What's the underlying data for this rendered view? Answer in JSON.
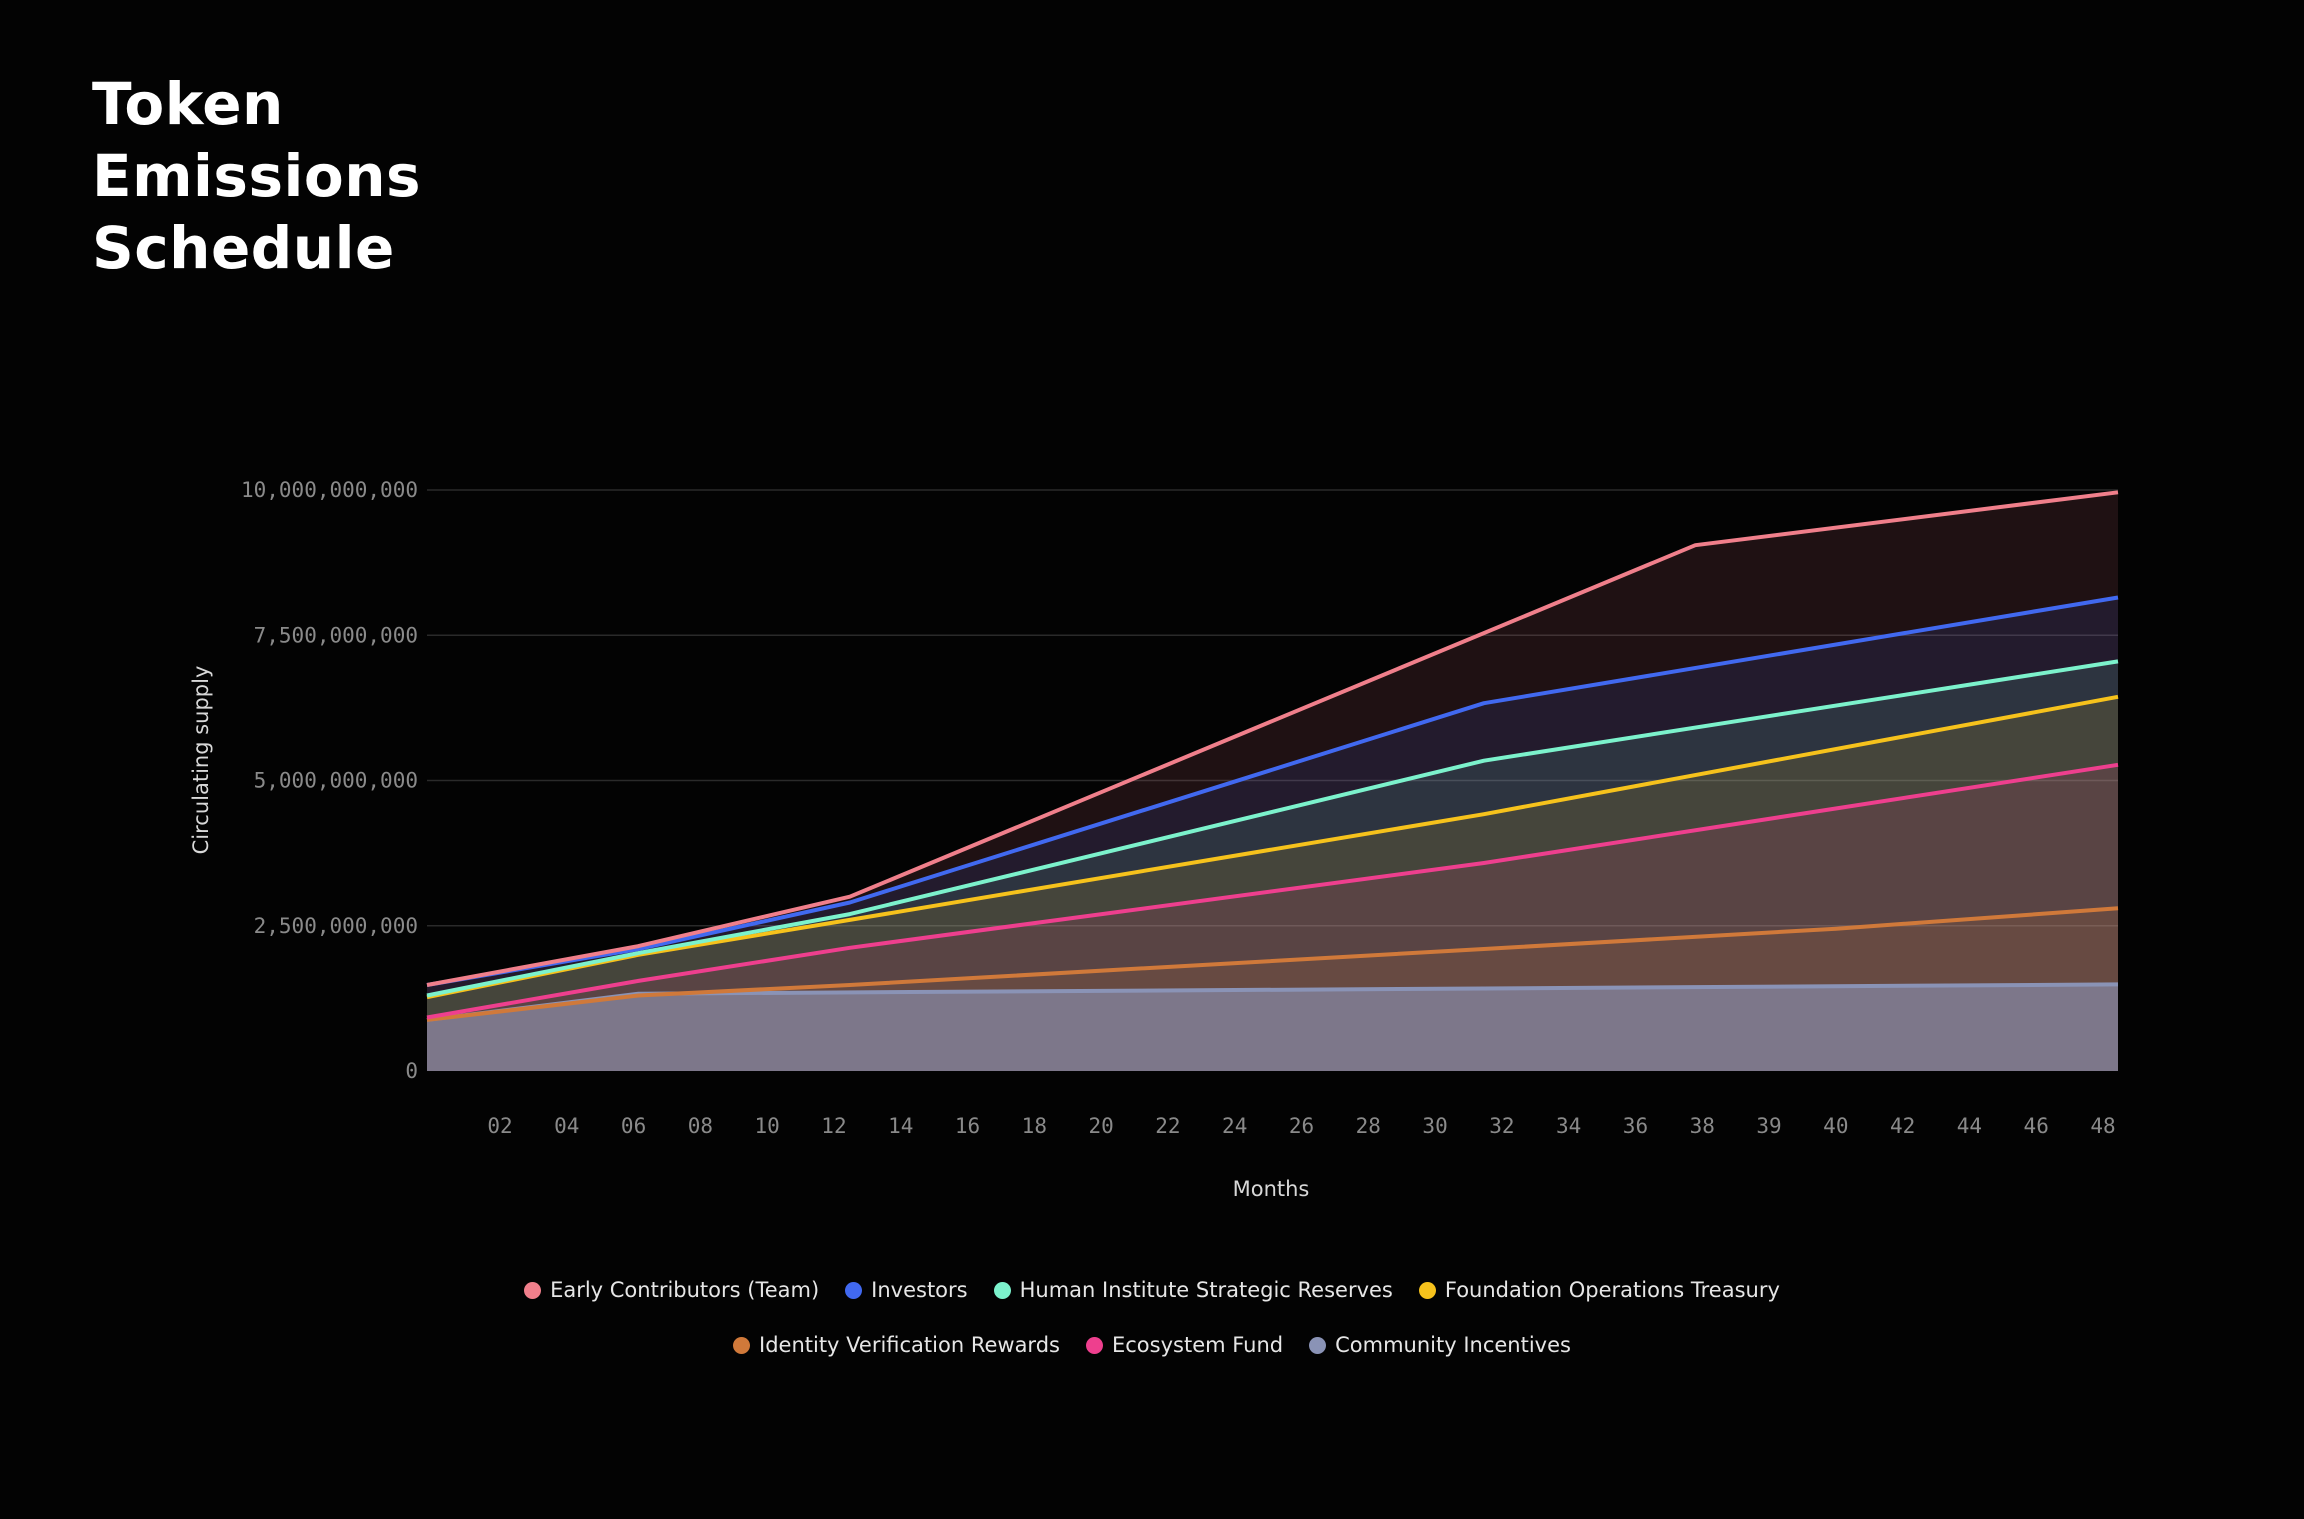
{
  "title_lines": [
    "Token",
    "Emissions",
    "Schedule"
  ],
  "chart_data": {
    "type": "area",
    "title": "Token Emissions Schedule",
    "xlabel": "Months",
    "ylabel": "Circulating supply",
    "ylim": [
      0,
      10000000000
    ],
    "y_ticks": [
      {
        "value": 0,
        "label": "0"
      },
      {
        "value": 2500000000,
        "label": "2,500,000,000"
      },
      {
        "value": 5000000000,
        "label": "5,000,000,000"
      },
      {
        "value": 7500000000,
        "label": "7,500,000,000"
      },
      {
        "value": 10000000000,
        "label": "10,000,000,000"
      }
    ],
    "x_tick_labels": [
      "02",
      "04",
      "06",
      "08",
      "10",
      "12",
      "14",
      "16",
      "18",
      "20",
      "22",
      "24",
      "26",
      "28",
      "30",
      "32",
      "34",
      "36",
      "38",
      "39",
      "40",
      "42",
      "44",
      "46",
      "48"
    ],
    "xlim": [
      0,
      48
    ],
    "grid": true,
    "legend_position": "bottom",
    "series": [
      {
        "name": "Early Contributors (Team)",
        "color": "#f07f8b",
        "points": [
          [
            0,
            1480000000
          ],
          [
            6,
            2150000000
          ],
          [
            12,
            3000000000
          ],
          [
            36,
            9050000000
          ],
          [
            48,
            9960000000
          ]
        ]
      },
      {
        "name": "Investors",
        "color": "#4169f0",
        "points": [
          [
            0,
            1480000000
          ],
          [
            6,
            2100000000
          ],
          [
            12,
            2900000000
          ],
          [
            30,
            6330000000
          ],
          [
            48,
            8150000000
          ]
        ]
      },
      {
        "name": "Human Institute Strategic Reserves",
        "color": "#7cf2cc",
        "points": [
          [
            0,
            1300000000
          ],
          [
            6,
            2030000000
          ],
          [
            12,
            2700000000
          ],
          [
            30,
            5340000000
          ],
          [
            48,
            7050000000
          ]
        ]
      },
      {
        "name": "Foundation Operations Treasury",
        "color": "#f6c21c",
        "points": [
          [
            0,
            1270000000
          ],
          [
            6,
            2000000000
          ],
          [
            12,
            2600000000
          ],
          [
            30,
            4420000000
          ],
          [
            48,
            6440000000
          ]
        ]
      },
      {
        "name": "Identity Verification Rewards",
        "color": "#d0793a",
        "points": [
          [
            0,
            880000000
          ],
          [
            6,
            1300000000
          ],
          [
            12,
            1480000000
          ],
          [
            30,
            2100000000
          ],
          [
            40,
            2450000000
          ],
          [
            48,
            2800000000
          ]
        ]
      },
      {
        "name": "Ecosystem Fund",
        "color": "#ee3f8e",
        "points": [
          [
            0,
            920000000
          ],
          [
            6,
            1550000000
          ],
          [
            12,
            2120000000
          ],
          [
            30,
            3580000000
          ],
          [
            48,
            5270000000
          ]
        ]
      },
      {
        "name": "Community Incentives",
        "color": "#8a93b6",
        "points": [
          [
            0,
            880000000
          ],
          [
            6,
            1330000000
          ],
          [
            30,
            1420000000
          ],
          [
            48,
            1490000000
          ]
        ]
      }
    ]
  },
  "legend_rows": [
    [
      0,
      1,
      2,
      3
    ],
    [
      4,
      5,
      6
    ]
  ]
}
